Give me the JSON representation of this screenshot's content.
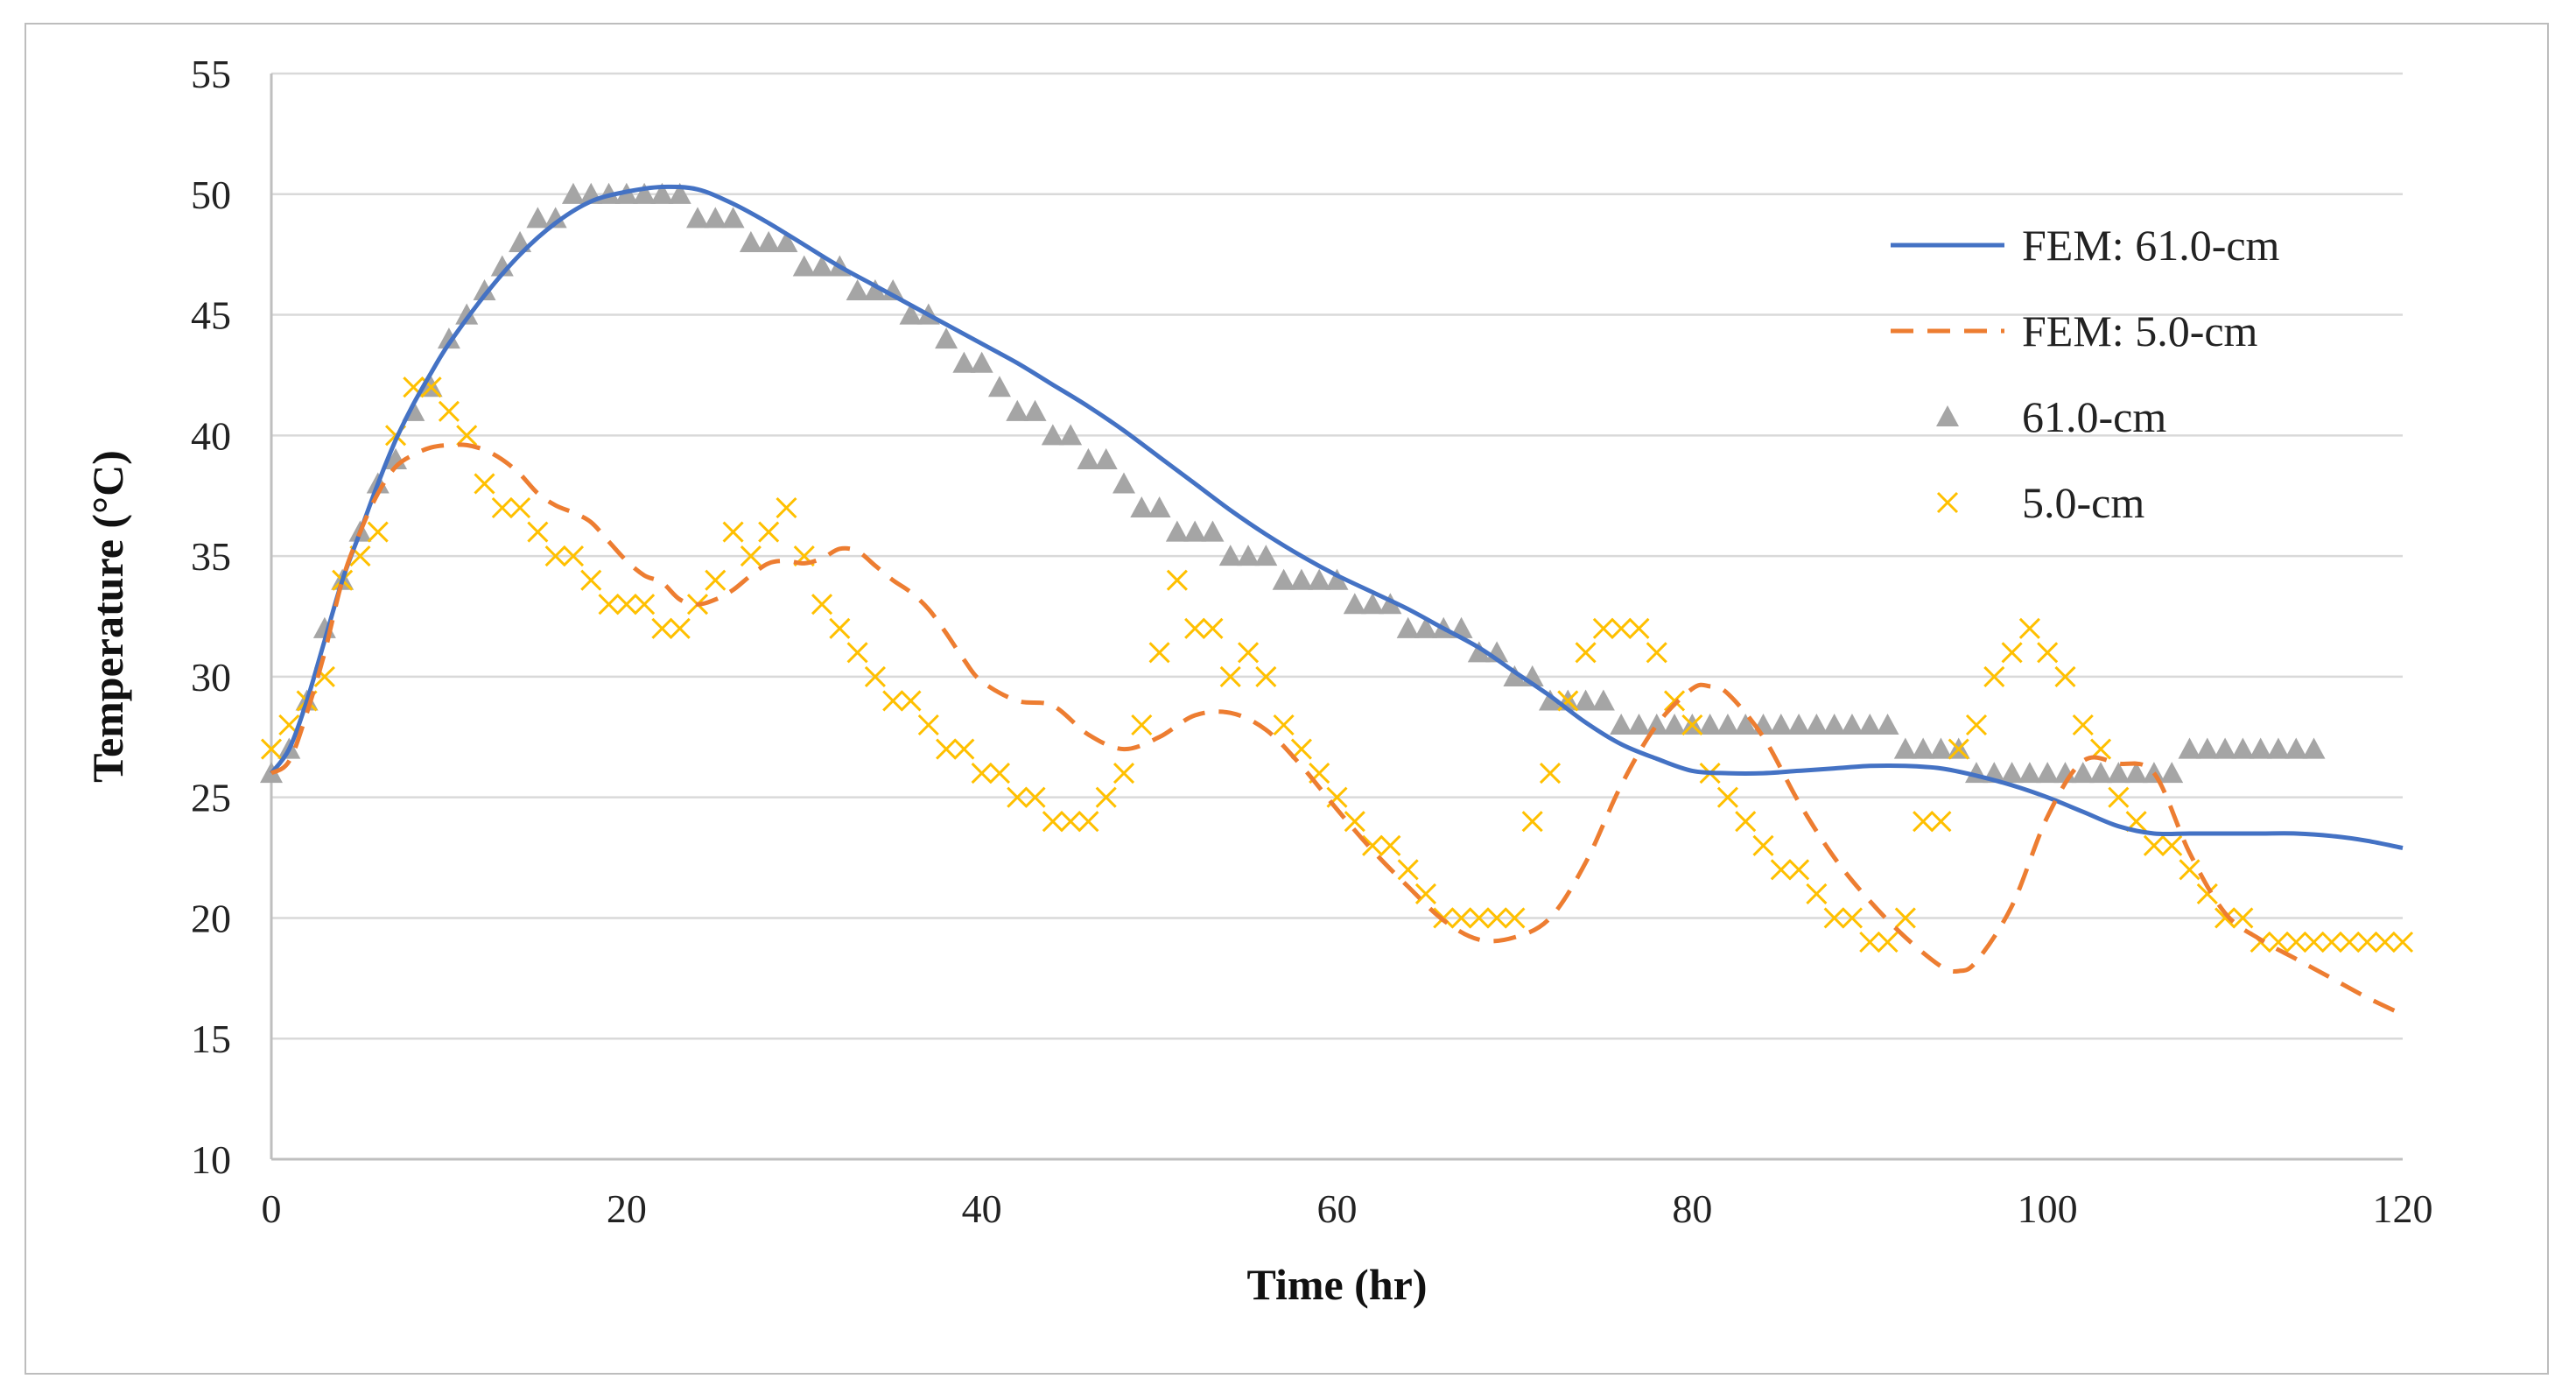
{
  "chart_data": {
    "type": "line",
    "title": "",
    "xlabel": "Time (hr)",
    "ylabel": "Temperature (°C)",
    "xlim": [
      0,
      120
    ],
    "ylim": [
      10,
      55
    ],
    "xticks": [
      0,
      20,
      40,
      60,
      80,
      100,
      120
    ],
    "yticks": [
      10,
      15,
      20,
      25,
      30,
      35,
      40,
      45,
      50,
      55
    ],
    "x_tick_labels": [
      "0",
      "20",
      "40",
      "60",
      "80",
      "100",
      "120"
    ],
    "y_tick_labels": [
      "10",
      "15",
      "20",
      "25",
      "30",
      "35",
      "40",
      "45",
      "50",
      "55"
    ],
    "grid": "horizontal",
    "legend_position": "right",
    "series": [
      {
        "name": "FEM: 61.0-cm",
        "kind": "line",
        "style": "solid",
        "color": "#4472c4",
        "x": [
          0,
          1,
          2,
          3,
          4,
          5,
          6,
          7,
          8,
          9,
          10,
          12,
          14,
          16,
          18,
          20,
          22,
          24,
          26,
          28,
          30,
          32,
          34,
          36,
          38,
          40,
          42,
          44,
          46,
          48,
          50,
          52,
          54,
          56,
          58,
          60,
          62,
          64,
          66,
          68,
          70,
          72,
          74,
          76,
          78,
          80,
          82,
          84,
          86,
          88,
          90,
          92,
          94,
          96,
          98,
          100,
          102,
          104,
          106,
          108,
          110,
          112,
          114,
          116,
          118,
          120
        ],
        "values": [
          26,
          27,
          29,
          31.5,
          34,
          36,
          38,
          39.8,
          41.3,
          42.6,
          43.8,
          45.8,
          47.5,
          48.8,
          49.7,
          50.1,
          50.3,
          50.2,
          49.6,
          48.8,
          47.9,
          47,
          46.2,
          45.4,
          44.6,
          43.8,
          43,
          42.1,
          41.2,
          40.2,
          39.1,
          38,
          36.9,
          35.9,
          35,
          34.2,
          33.5,
          32.8,
          32,
          31.2,
          30.2,
          29.2,
          28.1,
          27.2,
          26.6,
          26.1,
          26,
          26,
          26.1,
          26.2,
          26.3,
          26.3,
          26.2,
          25.9,
          25.5,
          25,
          24.4,
          23.8,
          23.5,
          23.5,
          23.5,
          23.5,
          23.5,
          23.4,
          23.2,
          22.9
        ]
      },
      {
        "name": "FEM: 5.0-cm",
        "kind": "line",
        "style": "dashed",
        "color": "#ed7d31",
        "x": [
          0,
          1,
          2,
          3,
          4,
          5,
          6,
          7,
          8,
          9,
          10,
          11,
          12,
          13,
          14,
          15,
          16,
          17,
          18,
          19,
          20,
          21,
          22,
          23,
          24,
          25,
          26,
          27,
          28,
          29,
          30,
          31,
          32,
          33,
          34,
          35,
          36,
          37,
          38,
          39,
          40,
          42,
          44,
          46,
          48,
          50,
          52,
          54,
          56,
          58,
          60,
          62,
          64,
          66,
          68,
          70,
          72,
          74,
          76,
          78,
          80,
          81,
          82,
          84,
          86,
          88,
          90,
          92,
          94,
          95,
          96,
          98,
          100,
          102,
          104,
          106,
          108,
          110,
          112,
          114,
          116,
          118,
          120
        ],
        "values": [
          26,
          26.5,
          28.5,
          31,
          34,
          36,
          37.6,
          38.7,
          39.2,
          39.5,
          39.6,
          39.6,
          39.4,
          39,
          38.4,
          37.6,
          37.1,
          36.8,
          36.4,
          35.6,
          34.8,
          34.2,
          33.9,
          33.2,
          33,
          33.2,
          33.6,
          34.2,
          34.7,
          34.8,
          34.7,
          34.9,
          35.3,
          35.2,
          34.6,
          34,
          33.5,
          32.8,
          31.8,
          30.7,
          29.8,
          29,
          28.8,
          27.6,
          27,
          27.5,
          28.4,
          28.5,
          27.8,
          26.3,
          24.5,
          22.8,
          21.3,
          19.9,
          19.1,
          19.2,
          20,
          22.3,
          25.5,
          28,
          29.5,
          29.6,
          29.3,
          27.5,
          24.8,
          22.5,
          20.7,
          19.2,
          18,
          17.8,
          18.2,
          20.5,
          24.2,
          26.5,
          26.4,
          26,
          22.7,
          20.2,
          19.1,
          18.3,
          17.5,
          16.7,
          16
        ]
      },
      {
        "name": "61.0-cm",
        "kind": "scatter",
        "marker": "triangle",
        "color": "#a5a5a5",
        "x": [
          0,
          1,
          2,
          3,
          4,
          5,
          6,
          7,
          8,
          9,
          10,
          11,
          12,
          13,
          14,
          15,
          16,
          17,
          18,
          19,
          20,
          21,
          22,
          23,
          24,
          25,
          26,
          27,
          28,
          29,
          30,
          31,
          32,
          33,
          34,
          35,
          36,
          37,
          38,
          39,
          40,
          41,
          42,
          43,
          44,
          45,
          46,
          47,
          48,
          49,
          50,
          51,
          52,
          53,
          54,
          55,
          56,
          57,
          58,
          59,
          60,
          61,
          62,
          63,
          64,
          65,
          66,
          67,
          68,
          69,
          70,
          71,
          72,
          73,
          74,
          75,
          76,
          77,
          78,
          79,
          80,
          81,
          82,
          83,
          84,
          85,
          86,
          87,
          88,
          89,
          90,
          91,
          92,
          93,
          94,
          95,
          96,
          97,
          98,
          99,
          100,
          101,
          102,
          103,
          104,
          105,
          106,
          107,
          108,
          109,
          110,
          111,
          112,
          113,
          114,
          115
        ],
        "values": [
          26,
          27,
          29,
          32,
          34,
          36,
          38,
          39,
          41,
          42,
          44,
          45,
          46,
          47,
          48,
          49,
          49,
          50,
          50,
          50,
          50,
          50,
          50,
          50,
          49,
          49,
          49,
          48,
          48,
          48,
          47,
          47,
          47,
          46,
          46,
          46,
          45,
          45,
          44,
          43,
          43,
          42,
          41,
          41,
          40,
          40,
          39,
          39,
          38,
          37,
          37,
          36,
          36,
          36,
          35,
          35,
          35,
          34,
          34,
          34,
          34,
          33,
          33,
          33,
          32,
          32,
          32,
          32,
          31,
          31,
          30,
          30,
          29,
          29,
          29,
          29,
          28,
          28,
          28,
          28,
          28,
          28,
          28,
          28,
          28,
          28,
          28,
          28,
          28,
          28,
          28,
          28,
          27,
          27,
          27,
          27,
          26,
          26,
          26,
          26,
          26,
          26,
          26,
          26,
          26,
          26,
          26,
          26,
          27,
          27,
          27,
          27,
          27,
          27,
          27,
          27
        ]
      },
      {
        "name": "5.0-cm",
        "kind": "scatter",
        "marker": "x",
        "color": "#ffc000",
        "x": [
          0,
          1,
          2,
          3,
          4,
          5,
          6,
          7,
          8,
          9,
          10,
          11,
          12,
          13,
          14,
          15,
          16,
          17,
          18,
          19,
          20,
          21,
          22,
          23,
          24,
          25,
          26,
          27,
          28,
          29,
          30,
          31,
          32,
          33,
          34,
          35,
          36,
          37,
          38,
          39,
          40,
          41,
          42,
          43,
          44,
          45,
          46,
          47,
          48,
          49,
          50,
          51,
          52,
          53,
          54,
          55,
          56,
          57,
          58,
          59,
          60,
          61,
          62,
          63,
          64,
          65,
          66,
          67,
          68,
          69,
          70,
          71,
          72,
          73,
          74,
          75,
          76,
          77,
          78,
          79,
          80,
          81,
          82,
          83,
          84,
          85,
          86,
          87,
          88,
          89,
          90,
          91,
          92,
          93,
          94,
          95,
          96,
          97,
          98,
          99,
          100,
          101,
          102,
          103,
          104,
          105,
          106,
          107,
          108,
          109,
          110,
          111,
          112,
          113,
          114,
          115,
          116,
          117,
          118,
          119,
          120
        ],
        "values": [
          27,
          28,
          29,
          30,
          34,
          35,
          36,
          40,
          42,
          42,
          41,
          40,
          38,
          37,
          37,
          36,
          35,
          35,
          34,
          33,
          33,
          33,
          32,
          32,
          33,
          34,
          36,
          35,
          36,
          37,
          35,
          33,
          32,
          31,
          30,
          29,
          29,
          28,
          27,
          27,
          26,
          26,
          25,
          25,
          24,
          24,
          24,
          25,
          26,
          28,
          31,
          34,
          32,
          32,
          30,
          31,
          30,
          28,
          27,
          26,
          25,
          24,
          23,
          23,
          22,
          21,
          20,
          20,
          20,
          20,
          20,
          24,
          26,
          29,
          31,
          32,
          32,
          32,
          31,
          29,
          28,
          26,
          25,
          24,
          23,
          22,
          22,
          21,
          20,
          20,
          19,
          19,
          20,
          24,
          24,
          27,
          28,
          30,
          31,
          32,
          31,
          30,
          28,
          27,
          25,
          24,
          23,
          23,
          22,
          21,
          20,
          20,
          19,
          19,
          19,
          19,
          19,
          19,
          19,
          19,
          19
        ]
      }
    ]
  }
}
